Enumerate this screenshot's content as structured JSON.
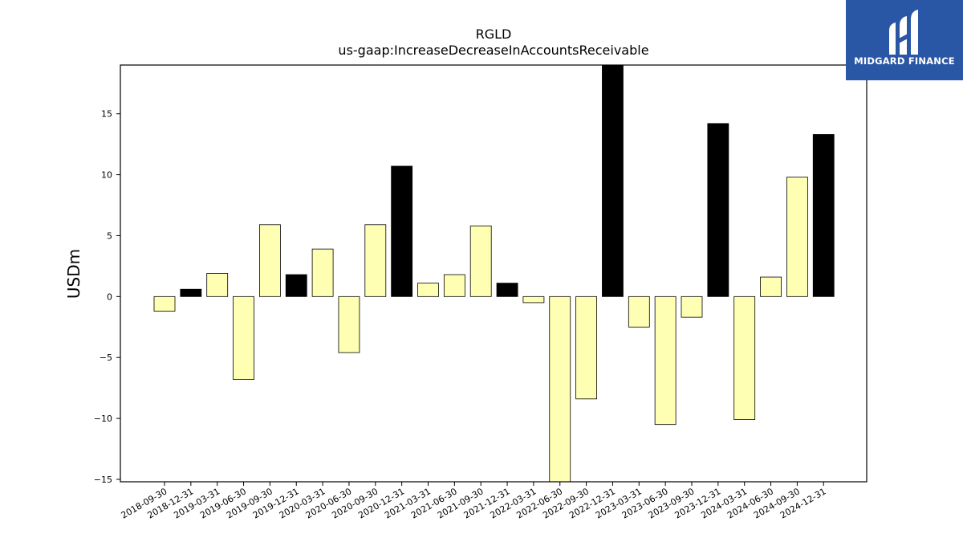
{
  "chart_data": {
    "type": "bar",
    "title": "RGLD",
    "subtitle": "us-gaap:IncreaseDecreaseInAccountsReceivable",
    "xlabel": "",
    "ylabel": "USDm",
    "ylim": [
      -15.2,
      19
    ],
    "yticks": [
      -15,
      -10,
      -5,
      0,
      5,
      10,
      15
    ],
    "grid": false,
    "colors": {
      "positive_fill": "#ffffb3",
      "highlight_fill": "#000000",
      "edge": "#000000"
    },
    "categories": [
      "2018-09-30",
      "2018-12-31",
      "2019-03-31",
      "2019-06-30",
      "2019-09-30",
      "2019-12-31",
      "2020-03-31",
      "2020-06-30",
      "2020-09-30",
      "2020-12-31",
      "2021-03-31",
      "2021-06-30",
      "2021-09-30",
      "2021-12-31",
      "2022-03-31",
      "2022-06-30",
      "2022-09-30",
      "2022-12-31",
      "2023-03-31",
      "2023-06-30",
      "2023-09-30",
      "2023-12-31",
      "2024-03-31",
      "2024-06-30",
      "2024-09-30",
      "2024-12-31"
    ],
    "values": [
      -1.2,
      0.6,
      1.9,
      -6.8,
      5.9,
      1.8,
      3.9,
      -4.6,
      5.9,
      10.7,
      1.1,
      1.8,
      5.8,
      1.1,
      -0.5,
      -16.0,
      -8.4,
      19.5,
      -2.5,
      -10.5,
      -1.7,
      14.2,
      -10.1,
      1.6,
      9.8,
      13.3
    ],
    "highlight": [
      false,
      true,
      false,
      false,
      false,
      true,
      false,
      false,
      false,
      true,
      false,
      false,
      false,
      true,
      false,
      false,
      false,
      true,
      false,
      false,
      false,
      true,
      false,
      false,
      false,
      true
    ]
  },
  "logo": {
    "text": "MIDGARD FINANCE",
    "icon": "midgard-logo-icon"
  }
}
